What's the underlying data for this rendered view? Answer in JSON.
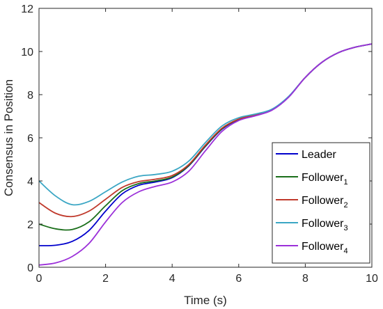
{
  "chart_data": {
    "type": "line",
    "title": "",
    "xlabel": "Time (s)",
    "ylabel": "Consensus in Position",
    "xlim": [
      0,
      10
    ],
    "ylim": [
      0,
      12
    ],
    "xticks": [
      0,
      2,
      4,
      6,
      8,
      10
    ],
    "yticks": [
      0,
      2,
      4,
      6,
      8,
      10,
      12
    ],
    "xtick_labels": [
      "0",
      "2",
      "4",
      "6",
      "8",
      "10"
    ],
    "ytick_labels": [
      "0",
      "2",
      "4",
      "6",
      "8",
      "10",
      "12"
    ],
    "grid": false,
    "legend_position": "bottom-right",
    "x": [
      0,
      0.5,
      1,
      1.5,
      2,
      2.5,
      3,
      3.5,
      4,
      4.5,
      5,
      5.5,
      6,
      6.5,
      7,
      7.5,
      8,
      8.5,
      9,
      9.5,
      10
    ],
    "series": [
      {
        "name": "Leader",
        "legend_base": "Leader",
        "legend_sub": "",
        "color": "#0000cc",
        "values": [
          1.0,
          1.02,
          1.2,
          1.7,
          2.6,
          3.4,
          3.8,
          3.95,
          4.15,
          4.7,
          5.6,
          6.4,
          6.85,
          7.05,
          7.3,
          7.9,
          8.8,
          9.5,
          9.95,
          10.2,
          10.35
        ]
      },
      {
        "name": "Follower1",
        "legend_base": "Follower",
        "legend_sub": "1",
        "color": "#1a6e1a",
        "values": [
          2.0,
          1.78,
          1.75,
          2.1,
          2.85,
          3.55,
          3.88,
          4.0,
          4.18,
          4.72,
          5.62,
          6.42,
          6.86,
          7.06,
          7.3,
          7.9,
          8.8,
          9.5,
          9.95,
          10.2,
          10.35
        ]
      },
      {
        "name": "Follower2",
        "legend_base": "Follower",
        "legend_sub": "2",
        "color": "#c0392b",
        "values": [
          3.0,
          2.5,
          2.35,
          2.6,
          3.15,
          3.7,
          3.97,
          4.08,
          4.25,
          4.76,
          5.66,
          6.45,
          6.87,
          7.07,
          7.31,
          7.9,
          8.8,
          9.5,
          9.95,
          10.2,
          10.35
        ]
      },
      {
        "name": "Follower3",
        "legend_base": "Follower",
        "legend_sub": "3",
        "color": "#3aa6c4",
        "values": [
          4.0,
          3.3,
          2.9,
          3.05,
          3.5,
          3.95,
          4.22,
          4.3,
          4.45,
          4.92,
          5.78,
          6.55,
          6.93,
          7.1,
          7.33,
          7.92,
          8.8,
          9.5,
          9.95,
          10.2,
          10.35
        ]
      },
      {
        "name": "Follower4",
        "legend_base": "Follower",
        "legend_sub": "4",
        "color": "#9b30d9",
        "values": [
          0.1,
          0.2,
          0.5,
          1.1,
          2.1,
          3.0,
          3.5,
          3.75,
          3.95,
          4.45,
          5.4,
          6.3,
          6.8,
          7.02,
          7.28,
          7.88,
          8.8,
          9.5,
          9.95,
          10.2,
          10.35
        ]
      }
    ]
  }
}
